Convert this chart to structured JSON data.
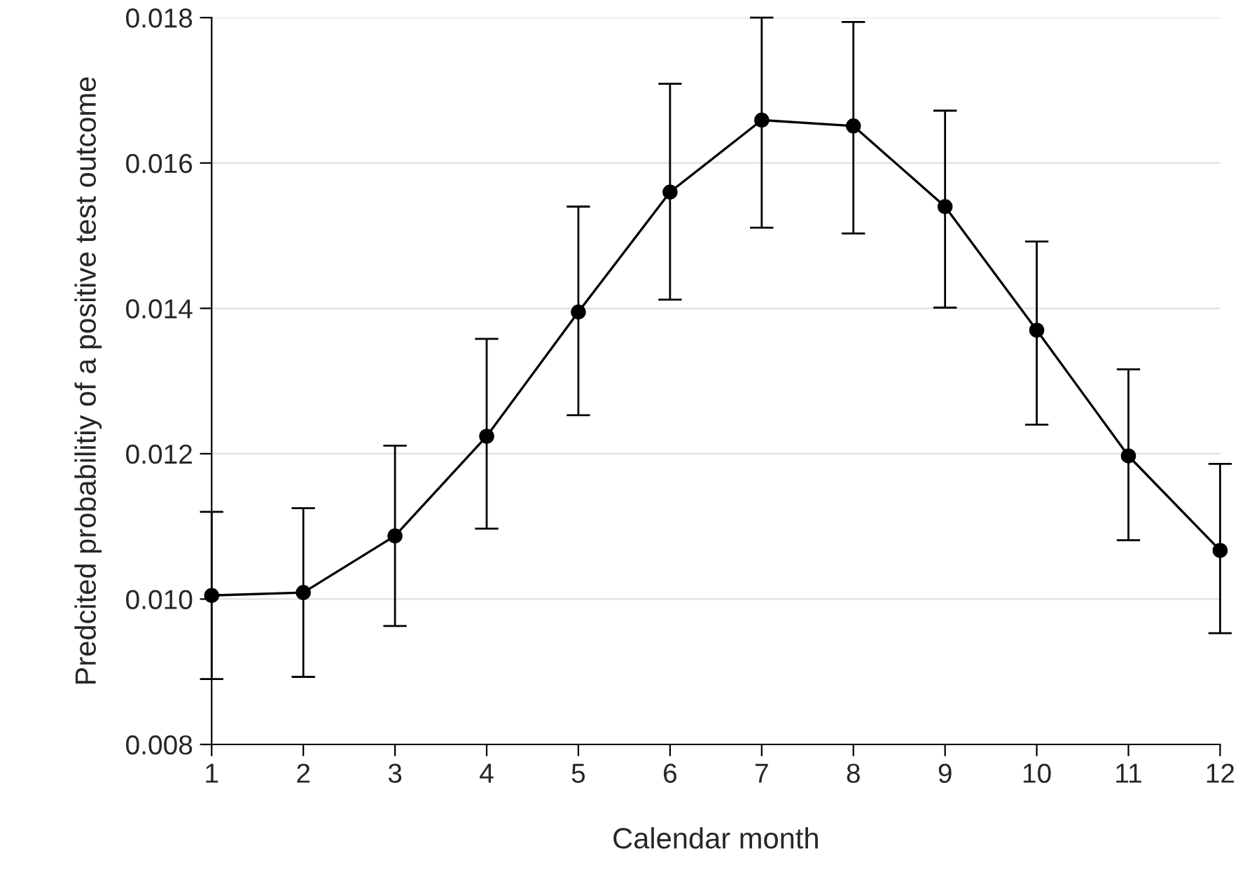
{
  "chart_data": {
    "type": "line",
    "xlabel": "Calendar month",
    "ylabel": "Predcited probabilitiy of a positive test outcome",
    "x": [
      1,
      2,
      3,
      4,
      5,
      6,
      7,
      8,
      9,
      10,
      11,
      12
    ],
    "series": [
      {
        "color": "#000000",
        "values": [
          0.01005,
          0.01009,
          0.01087,
          0.01224,
          0.01395,
          0.0156,
          0.01659,
          0.01651,
          0.0154,
          0.0137,
          0.01197,
          0.01067
        ],
        "errors": [
          [
            0.0089,
            0.0112
          ],
          [
            0.00893,
            0.01125
          ],
          [
            0.00963,
            0.01211
          ],
          [
            0.01097,
            0.01358
          ],
          [
            0.01253,
            0.0154
          ],
          [
            0.01412,
            0.01709
          ],
          [
            0.01511,
            0.018
          ],
          [
            0.01503,
            0.01794
          ],
          [
            0.01401,
            0.01672
          ],
          [
            0.0124,
            0.01492
          ],
          [
            0.01081,
            0.01316
          ],
          [
            0.00953,
            0.01186
          ]
        ]
      }
    ],
    "xlim": [
      1,
      12
    ],
    "xticks": [
      1,
      2,
      3,
      4,
      5,
      6,
      7,
      8,
      9,
      10,
      11,
      12
    ],
    "ylim": [
      0.008,
      0.018
    ],
    "yticks": [
      {
        "value": 0.008,
        "label": "0.008"
      },
      {
        "value": 0.01,
        "label": "0.010"
      },
      {
        "value": 0.012,
        "label": "0.012"
      },
      {
        "value": 0.014,
        "label": "0.014"
      },
      {
        "value": 0.016,
        "label": "0.016"
      },
      {
        "value": 0.018,
        "label": "0.018"
      }
    ],
    "grid": "y",
    "marker": "circle",
    "line_style": "solid"
  }
}
